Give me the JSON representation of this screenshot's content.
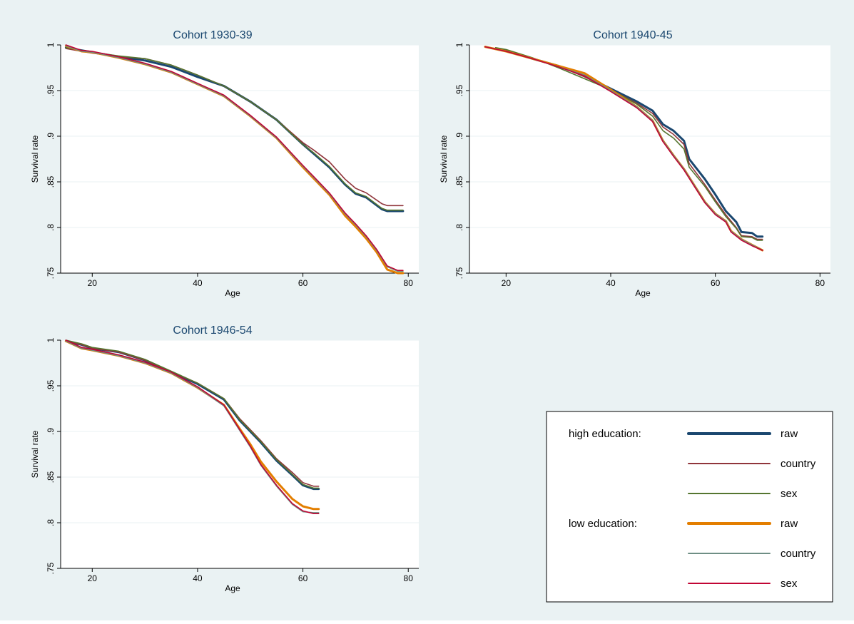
{
  "figure": {
    "colors": {
      "outer_bg": "#eaf2f3",
      "plot_bg": "#ffffff",
      "grid": "#eaf2f3",
      "axis": "#000000",
      "title_text": "#1a476f"
    }
  },
  "legend": {
    "groups": [
      {
        "label": "high education:",
        "entries": [
          "raw",
          "country",
          "sex"
        ]
      },
      {
        "label": "low education:",
        "entries": [
          "raw",
          "country",
          "sex"
        ]
      }
    ]
  },
  "chart_data": [
    {
      "type": "line",
      "title": "Cohort 1930-39",
      "xlabel": "Age",
      "ylabel": "Survival rate",
      "xlim": [
        14,
        82
      ],
      "ylim": [
        0.75,
        1.0
      ],
      "xticks": [
        20,
        40,
        60,
        80
      ],
      "yticks": [
        0.75,
        0.8,
        0.85,
        0.9,
        0.95,
        1.0
      ],
      "xtick_labels": [
        "20",
        "40",
        "60",
        "80"
      ],
      "ytick_labels": [
        ".75",
        ".8",
        ".85",
        ".9",
        ".95",
        "1"
      ],
      "grid": true,
      "series": [
        {
          "group": "high education",
          "name": "raw",
          "color": "#1a476f",
          "width": 3,
          "x": [
            15,
            20,
            25,
            30,
            35,
            40,
            45,
            50,
            55,
            60,
            62,
            65,
            68,
            70,
            72,
            75,
            76,
            79
          ],
          "y": [
            0.997,
            0.992,
            0.987,
            0.983,
            0.976,
            0.965,
            0.955,
            0.938,
            0.918,
            0.891,
            0.881,
            0.866,
            0.847,
            0.837,
            0.833,
            0.82,
            0.818,
            0.818
          ]
        },
        {
          "group": "high education",
          "name": "country",
          "color": "#90353b",
          "width": 1.6,
          "x": [
            15,
            20,
            25,
            30,
            35,
            40,
            45,
            50,
            55,
            60,
            62,
            65,
            68,
            70,
            72,
            75,
            76,
            79
          ],
          "y": [
            0.996,
            0.991,
            0.987,
            0.985,
            0.978,
            0.967,
            0.955,
            0.938,
            0.918,
            0.893,
            0.885,
            0.872,
            0.853,
            0.843,
            0.838,
            0.826,
            0.824,
            0.824
          ]
        },
        {
          "group": "high education",
          "name": "sex",
          "color": "#55752f",
          "width": 1.6,
          "x": [
            15,
            20,
            25,
            30,
            35,
            40,
            45,
            50,
            55,
            60,
            62,
            65,
            68,
            70,
            72,
            75,
            76,
            79
          ],
          "y": [
            0.997,
            0.992,
            0.988,
            0.985,
            0.978,
            0.967,
            0.955,
            0.938,
            0.918,
            0.891,
            0.882,
            0.867,
            0.848,
            0.838,
            0.834,
            0.821,
            0.819,
            0.819
          ]
        },
        {
          "group": "low education",
          "name": "raw",
          "color": "#e37e00",
          "width": 3,
          "x": [
            15,
            18,
            20,
            25,
            30,
            35,
            40,
            45,
            50,
            55,
            60,
            62,
            65,
            68,
            70,
            72,
            74,
            76,
            78,
            79
          ],
          "y": [
            0.999,
            0.993,
            0.992,
            0.986,
            0.979,
            0.97,
            0.957,
            0.944,
            0.922,
            0.898,
            0.866,
            0.854,
            0.836,
            0.813,
            0.801,
            0.788,
            0.773,
            0.754,
            0.75,
            0.75
          ]
        },
        {
          "group": "low education",
          "name": "country",
          "color": "#6e8e84",
          "width": 1.6,
          "x": [
            15,
            18,
            20,
            25,
            30,
            35,
            40,
            45,
            50,
            55,
            60,
            62,
            65,
            68,
            70,
            72,
            74,
            76,
            78,
            79
          ],
          "y": [
            0.999,
            0.993,
            0.992,
            0.986,
            0.979,
            0.97,
            0.957,
            0.944,
            0.922,
            0.898,
            0.867,
            0.855,
            0.837,
            0.815,
            0.803,
            0.79,
            0.775,
            0.757,
            0.752,
            0.752
          ]
        },
        {
          "group": "low education",
          "name": "sex",
          "color": "#c10534",
          "width": 1.6,
          "x": [
            15,
            18,
            20,
            25,
            30,
            35,
            40,
            45,
            50,
            55,
            60,
            62,
            65,
            68,
            70,
            72,
            74,
            76,
            78,
            79
          ],
          "y": [
            1.0,
            0.994,
            0.993,
            0.987,
            0.98,
            0.971,
            0.958,
            0.945,
            0.923,
            0.899,
            0.868,
            0.856,
            0.838,
            0.816,
            0.804,
            0.791,
            0.776,
            0.758,
            0.753,
            0.753
          ]
        }
      ]
    },
    {
      "type": "line",
      "title": "Cohort 1940-45",
      "xlabel": "Age",
      "ylabel": "Survival rate",
      "xlim": [
        13,
        82
      ],
      "ylim": [
        0.75,
        1.0
      ],
      "xticks": [
        20,
        40,
        60,
        80
      ],
      "yticks": [
        0.75,
        0.8,
        0.85,
        0.9,
        0.95,
        1.0
      ],
      "xtick_labels": [
        "20",
        "40",
        "60",
        "80"
      ],
      "ytick_labels": [
        ".75",
        ".8",
        ".85",
        ".9",
        ".95",
        "1"
      ],
      "grid": true,
      "series": [
        {
          "group": "high education",
          "name": "raw",
          "color": "#1a476f",
          "width": 3,
          "x": [
            18,
            20,
            25,
            30,
            35,
            40,
            45,
            48,
            50,
            52,
            54,
            55,
            58,
            60,
            62,
            64,
            65,
            67,
            68,
            69
          ],
          "y": [
            0.996,
            0.994,
            0.985,
            0.977,
            0.966,
            0.952,
            0.938,
            0.928,
            0.913,
            0.906,
            0.895,
            0.875,
            0.853,
            0.836,
            0.818,
            0.806,
            0.795,
            0.794,
            0.79,
            0.79
          ]
        },
        {
          "group": "high education",
          "name": "country",
          "color": "#90353b",
          "width": 1.6,
          "x": [
            18,
            20,
            25,
            30,
            35,
            40,
            45,
            48,
            50,
            52,
            54,
            55,
            58,
            60,
            62,
            64,
            65,
            67,
            68,
            69
          ],
          "y": [
            0.996,
            0.994,
            0.985,
            0.977,
            0.965,
            0.951,
            0.936,
            0.925,
            0.91,
            0.902,
            0.891,
            0.87,
            0.847,
            0.83,
            0.814,
            0.8,
            0.791,
            0.79,
            0.787,
            0.787
          ]
        },
        {
          "group": "high education",
          "name": "sex",
          "color": "#55752f",
          "width": 1.6,
          "x": [
            18,
            20,
            25,
            30,
            35,
            40,
            45,
            48,
            50,
            52,
            54,
            55,
            58,
            60,
            62,
            64,
            65,
            67,
            68,
            69
          ],
          "y": [
            0.997,
            0.995,
            0.986,
            0.975,
            0.963,
            0.951,
            0.935,
            0.922,
            0.906,
            0.898,
            0.886,
            0.866,
            0.845,
            0.828,
            0.812,
            0.799,
            0.79,
            0.789,
            0.786,
            0.786
          ]
        },
        {
          "group": "low education",
          "name": "raw",
          "color": "#e37e00",
          "width": 3,
          "x": [
            16,
            20,
            25,
            30,
            35,
            40,
            45,
            48,
            50,
            52,
            54,
            56,
            58,
            60,
            62,
            63,
            65,
            67,
            69
          ],
          "y": [
            0.998,
            0.993,
            0.985,
            0.977,
            0.969,
            0.951,
            0.932,
            0.917,
            0.895,
            0.879,
            0.864,
            0.846,
            0.828,
            0.815,
            0.807,
            0.796,
            0.787,
            0.781,
            0.775
          ]
        },
        {
          "group": "low education",
          "name": "country",
          "color": "#6e8e84",
          "width": 1.6,
          "x": [
            16,
            20,
            25,
            30,
            35,
            40,
            45,
            48,
            50,
            52,
            54,
            56,
            58,
            60,
            62,
            63,
            65,
            67,
            69
          ],
          "y": [
            0.998,
            0.993,
            0.985,
            0.976,
            0.967,
            0.95,
            0.932,
            0.917,
            0.895,
            0.879,
            0.864,
            0.846,
            0.828,
            0.815,
            0.807,
            0.796,
            0.787,
            0.781,
            0.775
          ]
        },
        {
          "group": "low education",
          "name": "sex",
          "color": "#c10534",
          "width": 1.6,
          "x": [
            16,
            20,
            25,
            30,
            35,
            40,
            45,
            48,
            50,
            52,
            54,
            56,
            58,
            60,
            62,
            63,
            65,
            67,
            69
          ],
          "y": [
            0.998,
            0.993,
            0.985,
            0.976,
            0.966,
            0.949,
            0.931,
            0.916,
            0.894,
            0.878,
            0.863,
            0.845,
            0.827,
            0.814,
            0.806,
            0.795,
            0.786,
            0.78,
            0.775
          ]
        }
      ]
    },
    {
      "type": "line",
      "title": "Cohort 1946-54",
      "xlabel": "Age",
      "ylabel": "Survival rate",
      "xlim": [
        14,
        82
      ],
      "ylim": [
        0.75,
        1.0
      ],
      "xticks": [
        20,
        40,
        60,
        80
      ],
      "yticks": [
        0.75,
        0.8,
        0.85,
        0.9,
        0.95,
        1.0
      ],
      "xtick_labels": [
        "20",
        "40",
        "60",
        "80"
      ],
      "ytick_labels": [
        ".75",
        ".8",
        ".85",
        ".9",
        ".95",
        "1"
      ],
      "grid": true,
      "series": [
        {
          "group": "high education",
          "name": "raw",
          "color": "#1a476f",
          "width": 3,
          "x": [
            15,
            18,
            20,
            25,
            30,
            35,
            40,
            45,
            48,
            50,
            52,
            55,
            58,
            60,
            62,
            63
          ],
          "y": [
            0.999,
            0.995,
            0.991,
            0.987,
            0.978,
            0.965,
            0.952,
            0.935,
            0.912,
            0.9,
            0.888,
            0.868,
            0.852,
            0.841,
            0.837,
            0.837
          ]
        },
        {
          "group": "high education",
          "name": "country",
          "color": "#90353b",
          "width": 1.6,
          "x": [
            15,
            18,
            20,
            25,
            30,
            35,
            40,
            45,
            48,
            50,
            52,
            55,
            58,
            60,
            62,
            63
          ],
          "y": [
            0.999,
            0.995,
            0.991,
            0.987,
            0.978,
            0.965,
            0.953,
            0.936,
            0.914,
            0.902,
            0.89,
            0.87,
            0.855,
            0.844,
            0.84,
            0.84
          ]
        },
        {
          "group": "high education",
          "name": "sex",
          "color": "#55752f",
          "width": 1.6,
          "x": [
            15,
            18,
            20,
            25,
            30,
            35,
            40,
            45,
            48,
            50,
            52,
            55,
            58,
            60,
            62,
            63
          ],
          "y": [
            1.0,
            0.996,
            0.992,
            0.988,
            0.979,
            0.966,
            0.953,
            0.936,
            0.913,
            0.901,
            0.889,
            0.869,
            0.853,
            0.842,
            0.838,
            0.838
          ]
        },
        {
          "group": "low education",
          "name": "raw",
          "color": "#e37e00",
          "width": 3,
          "x": [
            15,
            18,
            20,
            25,
            30,
            35,
            40,
            45,
            48,
            50,
            52,
            55,
            58,
            60,
            62,
            63
          ],
          "y": [
            0.999,
            0.991,
            0.989,
            0.983,
            0.975,
            0.964,
            0.948,
            0.929,
            0.903,
            0.886,
            0.867,
            0.845,
            0.826,
            0.818,
            0.815,
            0.815
          ]
        },
        {
          "group": "low education",
          "name": "country",
          "color": "#6e8e84",
          "width": 1.6,
          "x": [
            15,
            18,
            20,
            25,
            30,
            35,
            40,
            45,
            48,
            50,
            52,
            55,
            58,
            60,
            62,
            63
          ],
          "y": [
            0.999,
            0.991,
            0.989,
            0.983,
            0.975,
            0.964,
            0.948,
            0.928,
            0.901,
            0.883,
            0.863,
            0.84,
            0.82,
            0.812,
            0.811,
            0.811
          ]
        },
        {
          "group": "low education",
          "name": "sex",
          "color": "#c10534",
          "width": 1.6,
          "x": [
            15,
            18,
            20,
            25,
            30,
            35,
            40,
            45,
            48,
            50,
            52,
            55,
            58,
            60,
            62,
            63
          ],
          "y": [
            1.0,
            0.992,
            0.99,
            0.984,
            0.976,
            0.965,
            0.949,
            0.929,
            0.902,
            0.884,
            0.864,
            0.841,
            0.821,
            0.813,
            0.81,
            0.81
          ]
        }
      ]
    }
  ]
}
